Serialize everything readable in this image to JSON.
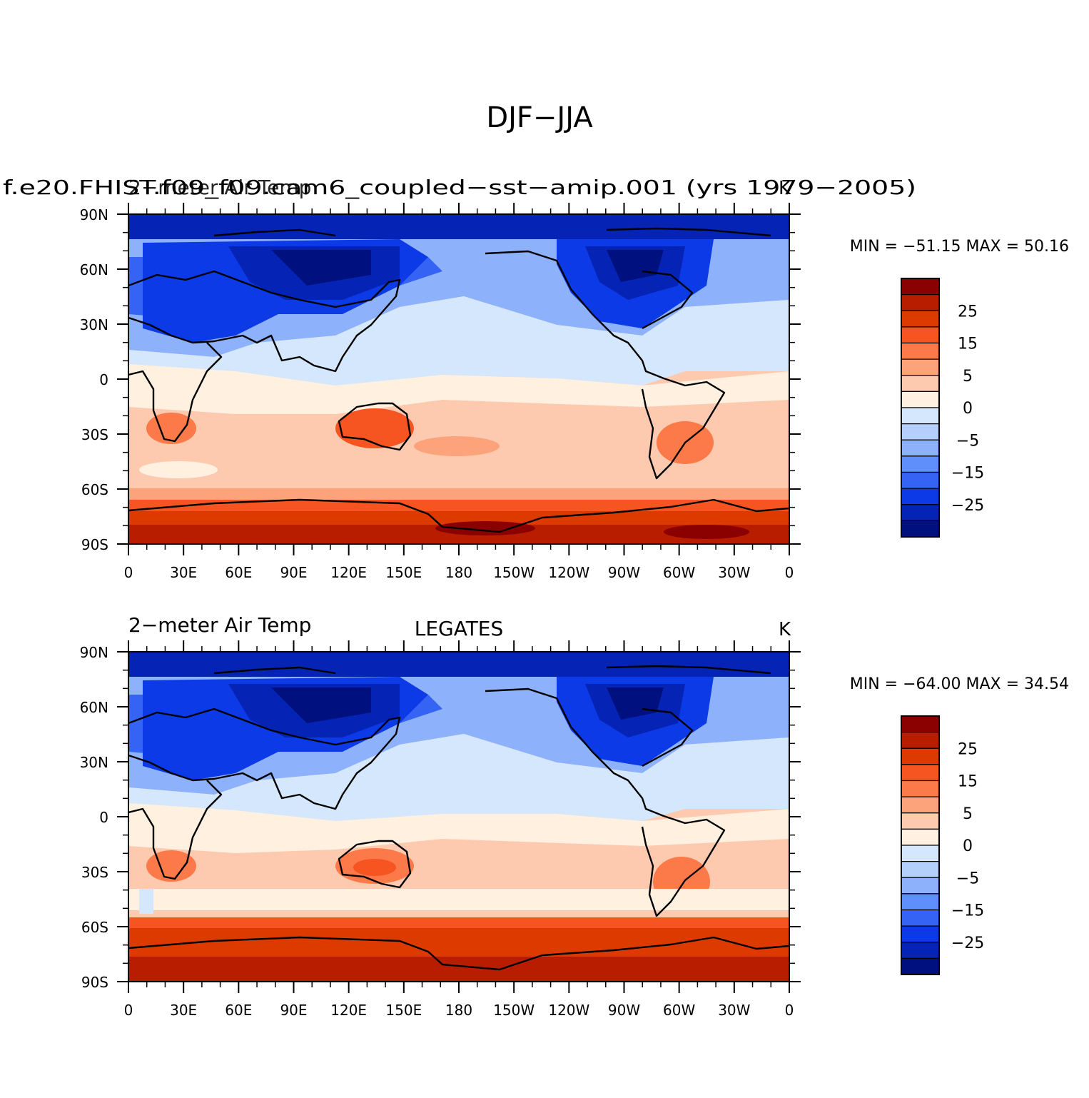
{
  "figure": {
    "title": "DJF−JJA"
  },
  "axes": {
    "lat_ticks": [
      "90N",
      "60N",
      "30N",
      "0",
      "30S",
      "60S",
      "90S"
    ],
    "lon_ticks": [
      "0",
      "30E",
      "60E",
      "90E",
      "120E",
      "150E",
      "180",
      "150W",
      "120W",
      "90W",
      "60W",
      "30W",
      "0"
    ]
  },
  "colorbar": {
    "labels": [
      "25",
      "15",
      "5",
      "0",
      "−5",
      "−15",
      "−25"
    ],
    "colors": [
      "#8b0000",
      "#b81d00",
      "#dd3a00",
      "#f65420",
      "#fc7a4a",
      "#fda37c",
      "#fdcab0",
      "#fff0e0",
      "#d5e7fc",
      "#b4cffc",
      "#8db2fb",
      "#5f8ffb",
      "#3564f5",
      "#0c3ae6",
      "#0523b4",
      "#00117f"
    ]
  },
  "panels": [
    {
      "left_title": "f.e20.FHIST.f09_f09.cam6_coupled−sst−amip.001 (yrs 1979−2005)",
      "left_title_overlay": "2−meter Air Temp",
      "center_title": "",
      "units": "K",
      "stats": "MIN = −51.15  MAX =   50.16",
      "min": -51.15,
      "max": 50.16
    },
    {
      "left_title": "2−meter Air Temp",
      "center_title": "LEGATES",
      "units": "K",
      "stats": "MIN = −64.00  MAX =   34.54",
      "min": -64.0,
      "max": 34.54
    }
  ]
}
